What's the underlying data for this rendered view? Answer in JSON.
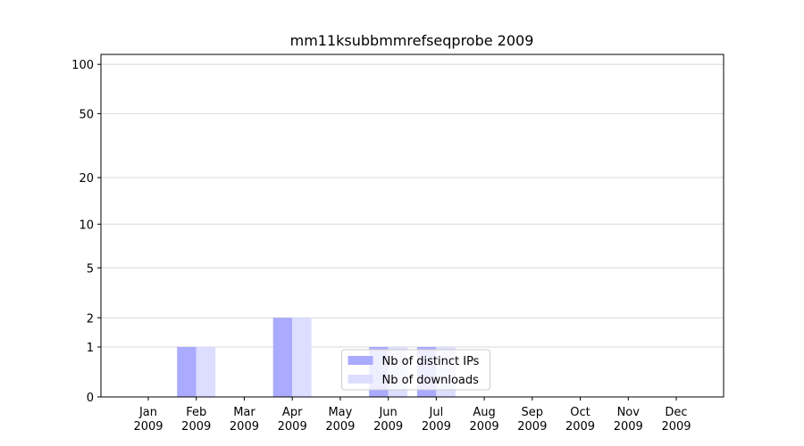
{
  "chart_data": {
    "type": "bar",
    "title": "mm11ksubbmmrefseqprobe 2009",
    "categories": [
      "Jan 2009",
      "Feb 2009",
      "Mar 2009",
      "Apr 2009",
      "May 2009",
      "Jun 2009",
      "Jul 2009",
      "Aug 2009",
      "Sep 2009",
      "Oct 2009",
      "Nov 2009",
      "Dec 2009"
    ],
    "series": [
      {
        "name": "Nb of distinct IPs",
        "color": "#aaaaff",
        "values": [
          0,
          1,
          0,
          2,
          0,
          1,
          1,
          0,
          0,
          0,
          0,
          0
        ]
      },
      {
        "name": "Nb of downloads",
        "color": "#ddddff",
        "values": [
          0,
          1,
          0,
          2,
          0,
          1,
          1,
          0,
          0,
          0,
          0,
          0
        ]
      }
    ],
    "yscale": "log1p",
    "ylim": [
      0,
      115
    ],
    "yticks": [
      0,
      1,
      2,
      5,
      10,
      20,
      50,
      100
    ],
    "grid": true,
    "legend": "lower center"
  }
}
